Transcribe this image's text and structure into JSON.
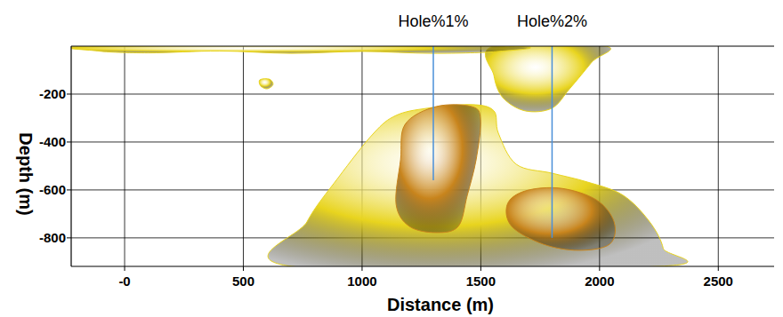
{
  "chart_data": {
    "type": "section",
    "x_label": "Distance (m)",
    "y_label": "Depth (m)",
    "xlim": [
      -225,
      2735
    ],
    "ylim": [
      -919,
      0
    ],
    "xticks": [
      {
        "value": 0,
        "label": "-0"
      },
      500,
      1000,
      1500,
      2000,
      2500
    ],
    "yticks": [
      -200,
      -400,
      -600,
      -800
    ],
    "grid": true,
    "holes": [
      {
        "label": "Hole%1%",
        "x": 1300,
        "bottom": -560
      },
      {
        "label": "Hole%2%",
        "x": 1800,
        "bottom": -800
      }
    ],
    "hole_color": "#4a90d9",
    "isosurfaces": [
      {
        "color": "#e8d41e",
        "polygons": [
          [
            [
              705,
              -919
            ],
            [
              768,
              -733
            ],
            [
              900,
              -548
            ],
            [
              1049,
              -363
            ],
            [
              1143,
              -289
            ],
            [
              1274,
              -259
            ],
            [
              1462,
              -244
            ],
            [
              1555,
              -270
            ],
            [
              1574,
              -363
            ],
            [
              1649,
              -493
            ],
            [
              1799,
              -530
            ],
            [
              1949,
              -567
            ],
            [
              2099,
              -622
            ],
            [
              2211,
              -733
            ],
            [
              2268,
              -844
            ],
            [
              2249,
              -919
            ]
          ],
          [
            [
              1555,
              0
            ],
            [
              2024,
              0
            ],
            [
              1967,
              -67
            ],
            [
              1874,
              -178
            ],
            [
              1799,
              -259
            ],
            [
              1687,
              -270
            ],
            [
              1593,
              -215
            ],
            [
              1555,
              -122
            ]
          ],
          [
            [
              -112,
              0
            ],
            [
              1574,
              0
            ],
            [
              1574,
              -22
            ],
            [
              1300,
              -30
            ],
            [
              1000,
              -22
            ],
            [
              700,
              -30
            ],
            [
              400,
              -20
            ],
            [
              100,
              -28
            ],
            [
              -112,
              -20
            ]
          ],
          [
            [
              570,
              -140
            ],
            [
              610,
              -138
            ],
            [
              625,
              -160
            ],
            [
              600,
              -178
            ],
            [
              572,
              -165
            ]
          ]
        ]
      },
      {
        "color": "#c8841c",
        "polygons": [
          [
            [
              1181,
              -326
            ],
            [
              1312,
              -252
            ],
            [
              1462,
              -252
            ],
            [
              1499,
              -307
            ],
            [
              1480,
              -474
            ],
            [
              1443,
              -622
            ],
            [
              1405,
              -752
            ],
            [
              1312,
              -778
            ],
            [
              1199,
              -752
            ],
            [
              1143,
              -659
            ],
            [
              1162,
              -474
            ]
          ],
          [
            [
              1612,
              -659
            ],
            [
              1687,
              -604
            ],
            [
              1836,
              -593
            ],
            [
              1986,
              -641
            ],
            [
              2061,
              -733
            ],
            [
              2043,
              -826
            ],
            [
              1912,
              -852
            ],
            [
              1762,
              -826
            ],
            [
              1630,
              -752
            ]
          ]
        ]
      }
    ]
  }
}
